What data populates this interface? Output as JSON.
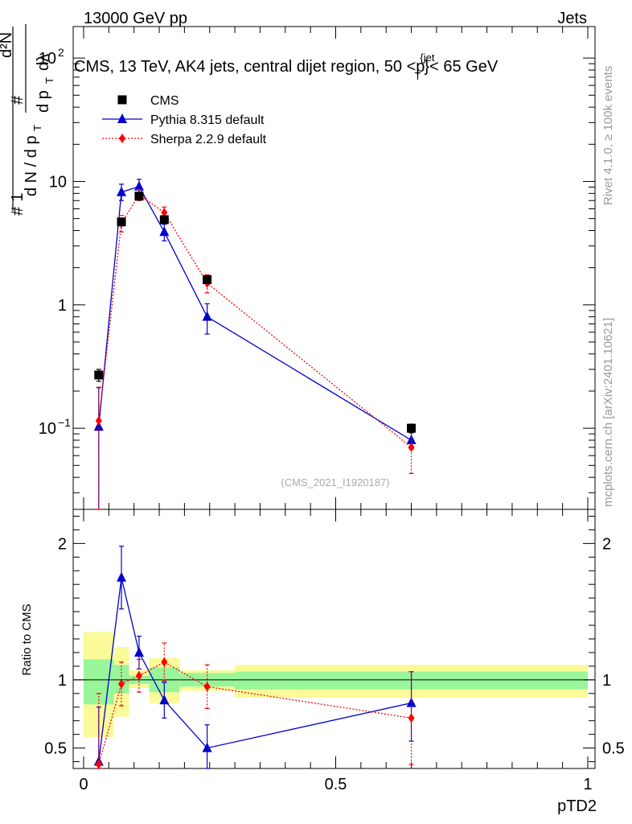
{
  "header": {
    "beam": "13000 GeV pp",
    "category": "Jets"
  },
  "side_labels": {
    "rivet": "Rivet 4.1.0, ≥ 100k events",
    "source": "mcplots.cern.ch [arXiv:2401.10621]"
  },
  "colors": {
    "cms": "#000000",
    "pythia": "#0000cc",
    "sherpa": "#ff0000",
    "band_inner": "#99f599",
    "band_outer": "#fafa99"
  },
  "chart_data": [
    {
      "type": "line",
      "scale": "log",
      "title": "CMS, 13 TeV, AK4 jets, central dijet region, 50 <p_T^{jet}< 65 GeV",
      "ylabel": "1/(dN/dp_T) d²N/(dp_T dλ)",
      "analysis_ref": "(CMS_2021_I1920187)",
      "xlim": [
        0,
        1
      ],
      "ylim": [
        0.022,
        180
      ],
      "yticks": [
        {
          "value": 0.1,
          "base": "10",
          "exp": "−1"
        },
        {
          "value": 1,
          "label": "1"
        },
        {
          "value": 10,
          "label": "10"
        },
        {
          "value": 100,
          "base": "10",
          "exp": "2"
        }
      ],
      "series": [
        {
          "name": "CMS",
          "marker": "square",
          "x": [
            0.03,
            0.075,
            0.11,
            0.16,
            0.245,
            0.65
          ],
          "y": [
            0.27,
            4.7,
            7.6,
            4.9,
            1.6,
            0.1
          ],
          "err": [
            0.03,
            0.25,
            0.3,
            0.25,
            0.1,
            0.008
          ]
        },
        {
          "name": "Pythia 8.315 default",
          "marker": "triangle",
          "x": [
            0.03,
            0.075,
            0.11,
            0.16,
            0.245,
            0.65
          ],
          "y": [
            0.103,
            8.2,
            9.1,
            3.9,
            0.8,
            0.08
          ],
          "err_lo": [
            0.09,
            1.2,
            1.2,
            0.6,
            0.22,
            0.012
          ],
          "err_hi": [
            0.11,
            1.3,
            1.3,
            0.6,
            0.22,
            0.012
          ]
        },
        {
          "name": "Sherpa 2.2.9 default",
          "marker": "diamond",
          "x": [
            0.03,
            0.075,
            0.11,
            0.16,
            0.245,
            0.65
          ],
          "y": [
            0.115,
            4.6,
            7.8,
            5.6,
            1.5,
            0.07
          ],
          "err_lo": [
            0.1,
            0.7,
            0.8,
            0.6,
            0.25,
            0.027
          ],
          "err_hi": [
            0.1,
            0.7,
            0.8,
            0.6,
            0.25,
            0.027
          ]
        }
      ]
    },
    {
      "type": "line",
      "title": "",
      "xlabel": "pTD2",
      "ylabel": "Ratio to CMS",
      "xlim": [
        0,
        1
      ],
      "ylim": [
        0.35,
        2.25
      ],
      "xticks": [
        {
          "value": 0,
          "label": "0"
        },
        {
          "value": 0.5,
          "label": "0.5"
        },
        {
          "value": 1,
          "label": "1"
        }
      ],
      "yticks": [
        {
          "value": 0.5,
          "label": "0.5"
        },
        {
          "value": 1,
          "label": "1"
        },
        {
          "value": 2,
          "label": "2"
        }
      ],
      "bands": [
        {
          "x0": 0.0,
          "x1": 0.06,
          "inner": [
            0.82,
            1.15
          ],
          "outer": [
            0.58,
            1.35
          ]
        },
        {
          "x0": 0.06,
          "x1": 0.09,
          "inner": [
            0.9,
            1.11
          ],
          "outer": [
            0.73,
            1.24
          ]
        },
        {
          "x0": 0.09,
          "x1": 0.13,
          "inner": [
            0.97,
            1.03
          ],
          "outer": [
            0.94,
            1.07
          ]
        },
        {
          "x0": 0.13,
          "x1": 0.19,
          "inner": [
            0.91,
            1.09
          ],
          "outer": [
            0.83,
            1.16
          ]
        },
        {
          "x0": 0.19,
          "x1": 0.3,
          "inner": [
            0.95,
            1.05
          ],
          "outer": [
            0.92,
            1.07
          ]
        },
        {
          "x0": 0.3,
          "x1": 1.0,
          "inner": [
            0.93,
            1.06
          ],
          "outer": [
            0.87,
            1.11
          ]
        }
      ],
      "series": [
        {
          "name": "Pythia 8.315 default",
          "marker": "triangle",
          "x": [
            0.03,
            0.075,
            0.11,
            0.16,
            0.245,
            0.65
          ],
          "y": [
            0.4,
            1.75,
            1.2,
            0.85,
            0.5,
            0.83
          ],
          "err_lo": [
            0.4,
            0.23,
            0.12,
            0.13,
            0.2,
            0.28
          ],
          "err_hi": [
            0.4,
            0.23,
            0.12,
            0.13,
            0.17,
            0.23
          ]
        },
        {
          "name": "Sherpa 2.2.9 default",
          "marker": "diamond",
          "x": [
            0.03,
            0.075,
            0.11,
            0.16,
            0.245,
            0.65
          ],
          "y": [
            0.38,
            0.97,
            1.03,
            1.13,
            0.95,
            0.72
          ],
          "err_lo": [
            0.3,
            0.16,
            0.12,
            0.14,
            0.16,
            0.34
          ],
          "err_hi": [
            0.52,
            0.16,
            0.12,
            0.14,
            0.16,
            0.34
          ]
        }
      ]
    }
  ]
}
